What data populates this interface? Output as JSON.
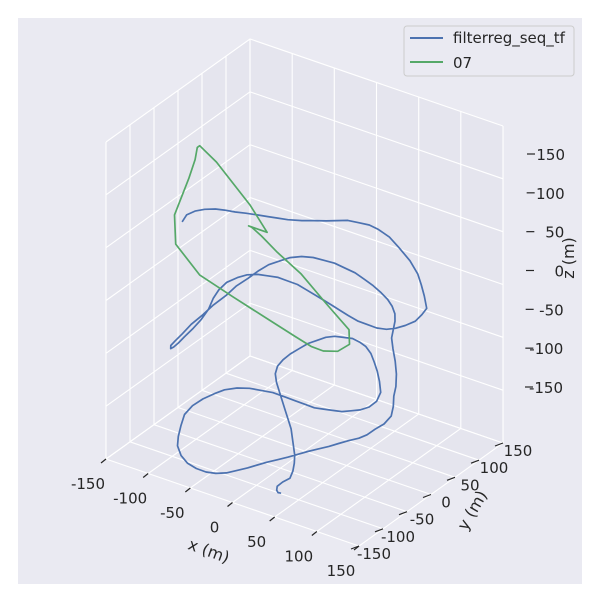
{
  "chart_data": {
    "type": "line",
    "projection": "3d",
    "title": "",
    "xlabel": "x (m)",
    "ylabel": "y (m)",
    "zlabel": "z (m)",
    "xlim": [
      -150,
      150
    ],
    "ylim": [
      -150,
      150
    ],
    "zlim": [
      -150,
      150
    ],
    "ticks": [
      -150,
      -100,
      -50,
      0,
      50,
      100,
      150
    ],
    "grid": true,
    "legend_position": "top-right",
    "colors": {
      "figure_bg": "#eaeaf2",
      "pane_bg": "#e5e5ee",
      "grid": "#ffffff",
      "text": "#262626",
      "series_1": "#4c72b0",
      "series_2": "#55a868"
    },
    "series": [
      {
        "name": "filterreg_seq_tf",
        "x": [
          -65,
          -63,
          -57,
          -50,
          -43,
          -38,
          -32,
          -27,
          -20,
          -15,
          -10,
          -5,
          5,
          12,
          20,
          26,
          32,
          38,
          45,
          50,
          58,
          65,
          75,
          82,
          85,
          88,
          92,
          88,
          83,
          75,
          68,
          62,
          55,
          48,
          42,
          35,
          30,
          25,
          20,
          14,
          8,
          2,
          -5,
          -12,
          -20,
          -27,
          -35,
          -42,
          -50,
          -55,
          -57,
          -58,
          -62,
          -68,
          -75,
          -80,
          -84,
          -87,
          -88,
          -85,
          -80,
          -74,
          -66,
          -59,
          -50,
          -43,
          -35,
          -28,
          -22,
          -15,
          -8,
          0,
          8,
          15,
          22,
          28,
          35,
          40,
          45,
          50,
          53,
          55,
          56,
          55,
          53,
          52,
          56,
          62,
          68,
          72,
          74,
          78,
          80,
          76,
          70,
          65,
          60,
          52,
          45,
          38,
          30,
          22,
          15,
          8,
          0,
          -8,
          -15,
          -22,
          -30,
          -38,
          -46,
          -53,
          -60,
          -66,
          -70,
          -72,
          -70,
          -68,
          -66,
          -60,
          -52,
          -44,
          -38,
          -30,
          -22,
          -15,
          -8,
          0,
          5,
          10,
          14,
          18,
          22,
          26,
          30,
          34,
          38,
          40,
          38,
          32,
          26,
          20,
          15,
          10,
          5,
          0,
          -6,
          -12,
          -18,
          -24,
          -30,
          -36,
          -42,
          -46,
          -48,
          -46,
          -40,
          -32,
          -24,
          -16,
          -8,
          0,
          6,
          12,
          18,
          22,
          25,
          26,
          22,
          20,
          24,
          30,
          36,
          42
        ],
        "y": [
          -140,
          -135,
          -128,
          -120,
          -110,
          -100,
          -88,
          -75,
          -62,
          -50,
          -38,
          -26,
          -14,
          -2,
          10,
          22,
          34,
          45,
          56,
          66,
          75,
          82,
          88,
          92,
          94,
          95,
          93,
          90,
          85,
          78,
          70,
          62,
          54,
          46,
          38,
          30,
          22,
          14,
          6,
          -2,
          -10,
          -18,
          -26,
          -34,
          -42,
          -50,
          -58,
          -66,
          -74,
          -82,
          -90,
          -98,
          -106,
          -112,
          -118,
          -122,
          -125,
          -126,
          -124,
          -120,
          -114,
          -106,
          -96,
          -86,
          -76,
          -66,
          -56,
          -46,
          -36,
          -26,
          -16,
          -6,
          4,
          14,
          24,
          34,
          44,
          54,
          64,
          72,
          80,
          86,
          90,
          92,
          92,
          90,
          86,
          80,
          72,
          64,
          56,
          48,
          40,
          32,
          24,
          16,
          8,
          0,
          -8,
          -16,
          -24,
          -32,
          -40,
          -48,
          -56,
          -64,
          -72,
          -80,
          -88,
          -96,
          -104,
          -112,
          -120,
          -128,
          -134,
          -138,
          -140,
          -138,
          -134,
          -128,
          -120,
          -110,
          -100,
          -88,
          -76,
          -64,
          -52,
          -40,
          -28,
          -16,
          -4,
          8,
          20,
          32,
          44,
          56,
          68,
          80,
          92,
          100,
          106,
          110,
          112,
          110,
          106,
          100,
          92,
          84,
          76,
          68,
          60,
          52,
          44,
          36,
          28,
          20,
          12,
          4,
          -4,
          -12,
          -20,
          -28,
          -36,
          -44,
          -52,
          -60,
          -68,
          -76,
          -84,
          -92,
          -100,
          -108,
          -116,
          -124
        ],
        "z": [
          95,
          100,
          103,
          104,
          103,
          100,
          96,
          92,
          88,
          84,
          80,
          76,
          74,
          72,
          70,
          68,
          66,
          62,
          58,
          52,
          44,
          34,
          22,
          10,
          0,
          -10,
          -20,
          -26,
          -32,
          -36,
          -38,
          -38,
          -36,
          -32,
          -28,
          -22,
          -16,
          -10,
          -4,
          2,
          8,
          14,
          18,
          22,
          24,
          26,
          26,
          24,
          20,
          14,
          8,
          0,
          -8,
          -16,
          -24,
          -30,
          -34,
          -36,
          -34,
          -30,
          -24,
          -16,
          -8,
          0,
          8,
          16,
          22,
          28,
          32,
          34,
          36,
          36,
          34,
          30,
          26,
          20,
          14,
          6,
          -2,
          -10,
          -18,
          -26,
          -34,
          -42,
          -50,
          -58,
          -66,
          -74,
          -82,
          -90,
          -96,
          -102,
          -108,
          -114,
          -118,
          -122,
          -124,
          -126,
          -128,
          -130,
          -132,
          -134,
          -136,
          -138,
          -140,
          -142,
          -144,
          -146,
          -148,
          -150,
          -150,
          -148,
          -144,
          -138,
          -130,
          -120,
          -110,
          -100,
          -90,
          -82,
          -76,
          -72,
          -70,
          -70,
          -72,
          -76,
          -80,
          -86,
          -92,
          -98,
          -104,
          -108,
          -112,
          -116,
          -118,
          -120,
          -120,
          -118,
          -114,
          -108,
          -102,
          -96,
          -90,
          -84,
          -80,
          -76,
          -74,
          -72,
          -72,
          -74,
          -76,
          -80,
          -84,
          -88,
          -92,
          -96,
          -100,
          -104,
          -108,
          -112,
          -116,
          -120,
          -124,
          -128,
          -132,
          -136,
          -140,
          -144,
          -146,
          -148,
          -148,
          -146,
          -142,
          -138
        ]
      },
      {
        "name": "07",
        "x": [
          -50,
          -70,
          -110,
          -130,
          -130,
          -124,
          -120,
          -120,
          -110,
          -80,
          -40,
          0,
          30,
          42,
          45,
          45,
          42,
          30,
          0,
          -30,
          -55,
          -68,
          -74,
          -72,
          -68,
          -60,
          -50
        ],
        "y": [
          10,
          10,
          10,
          10,
          5,
          -10,
          -30,
          -60,
          -75,
          -78,
          -78,
          -77,
          -72,
          -60,
          -40,
          -10,
          20,
          40,
          45,
          45,
          40,
          30,
          20,
          10,
          10,
          10,
          10
        ],
        "z": [
          40,
          60,
          90,
          100,
          100,
          95,
          85,
          60,
          40,
          20,
          10,
          0,
          -10,
          -20,
          -30,
          -40,
          -44,
          -40,
          -25,
          -5,
          10,
          25,
          35,
          40,
          40,
          40,
          40
        ]
      }
    ]
  }
}
